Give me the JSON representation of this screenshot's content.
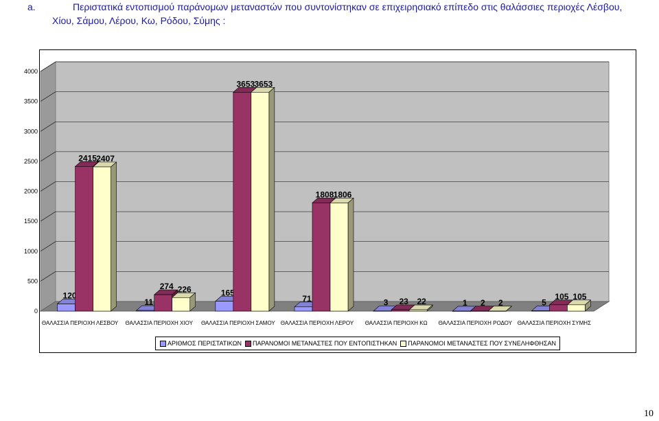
{
  "heading": {
    "number": "a.",
    "line1": "Περιστατικά εντοπισμού παράνομων μεταναστών που συντονίστηκαν σε επιχειρησιακό επίπεδο στις θαλάσσιες περιοχές  Λέσβου,",
    "line2": "Χίου, Σάμου, Λέρου, Κω, Ρόδου, Σύμης :"
  },
  "page_number": "10",
  "chart_data": {
    "type": "bar",
    "title": "",
    "xlabel": "",
    "ylabel": "",
    "ylim": [
      0,
      4000
    ],
    "yticks": [
      "0",
      "500",
      "1000",
      "1500",
      "2000",
      "2500",
      "3000",
      "3500",
      "4000"
    ],
    "grid": true,
    "legend_position": "bottom",
    "categories": [
      "ΘΑΛΑΣΣΙΑ ΠΕΡΙΟΧΗ ΛΕΣΒΟΥ",
      "ΘΑΛΑΣΣΙΑ ΠΕΡΙΟΧΗ ΧΙΟΥ",
      "ΘΑΛΑΣΣΙΑ ΠΕΡΙΟΧΗ ΣΑΜΟΥ",
      "ΘΑΛΑΣΣΙΑ ΠΕΡΙΟΧΗ ΛΕΡΟΥ",
      "ΘΑΛΑΣΣΙΑ ΠΕΡΙΟΧΗ ΚΩ",
      "ΘΑΛΑΣΣΙΑ ΠΕΡΙΟΧΗ ΡΟΔΟΥ",
      "ΘΑΛΑΣΣΙΑ ΠΕΡΙΟΧΗ ΣΥΜΗΣ"
    ],
    "series": [
      {
        "name": "ΑΡΙΘΜΟΣ ΠΕΡΙΣΤΑΤΙΚΩΝ",
        "color": "#9999ff",
        "values": [
          120,
          11,
          165,
          71,
          3,
          1,
          5
        ]
      },
      {
        "name": "ΠΑΡΑΝΟΜΟΙ ΜΕΤΑΝΑΣΤΕΣ ΠΟΥ ΕΝΤΟΠΙΣΤΗΚΑΝ",
        "color": "#993366",
        "values": [
          2415,
          274,
          3653,
          1808,
          23,
          2,
          105
        ]
      },
      {
        "name": "ΠΑΡΑΝΟΜΟΙ ΜΕΤΑΝΑΣΤΕΣ ΠΟΥ ΣΥΝΕΛΗΦΘΗΣΑΝ",
        "color": "#ffffcc",
        "values": [
          2407,
          226,
          3653,
          1806,
          22,
          2,
          105
        ]
      }
    ]
  }
}
